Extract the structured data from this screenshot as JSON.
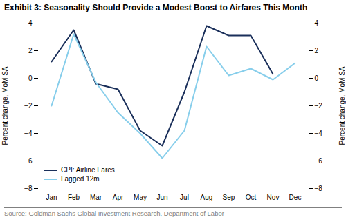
{
  "chart_data": {
    "type": "line",
    "title": "Exhibit 3: Seasonality Should Provide a Modest Boost to Airfares This Month",
    "ylabel": "Percent change, MoM SA",
    "y2label": "Percent change, MoM SA",
    "source": "Source: Goldman Sachs Global Investment Research, Department of Labor",
    "categories": [
      "Jan",
      "Feb",
      "Mar",
      "Apr",
      "May",
      "Jun",
      "Jul",
      "Aug",
      "Sep",
      "Oct",
      "Nov",
      "Dec"
    ],
    "series": [
      {
        "name": "CPI: Airline Fares",
        "color": "#1a2f5a",
        "values": [
          1.2,
          3.5,
          -0.4,
          -0.8,
          -3.8,
          -4.9,
          -1.0,
          3.8,
          3.1,
          3.1,
          0.3,
          null
        ]
      },
      {
        "name": "Lagged 12m",
        "color": "#87ceeb",
        "values": [
          -2.0,
          3.2,
          -0.3,
          -2.5,
          -4.0,
          -5.8,
          -3.8,
          2.3,
          0.2,
          0.7,
          -0.1,
          1.1
        ]
      }
    ],
    "ylim": [
      -8,
      4
    ],
    "yticks": [
      -8,
      -6,
      -4,
      -2,
      0,
      2,
      4
    ],
    "y2lim": [
      -8,
      4
    ],
    "y2ticks": [
      -8,
      -6,
      -4,
      -2,
      0,
      2,
      4
    ],
    "grid": false,
    "legend": "lower left"
  }
}
